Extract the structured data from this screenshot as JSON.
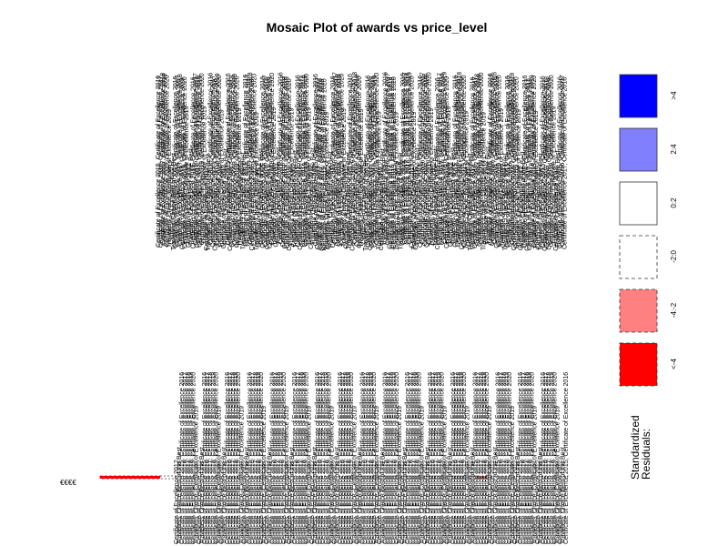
{
  "chart_data": {
    "type": "mosaic",
    "title": "Mosaic Plot of awards vs price_level",
    "row_labels": [
      "€€€€"
    ],
    "column_label_samples": [
      "Certificate of Excellence 2015, Certificate of Excellence 2016",
      "Certificate of Excellence 2016, Certificate of Excellence 2017",
      "Certificate of Excellence 2017, Certificate of Excellence 2018",
      "Certificate of Excellence 2018, Certificate of Excellence 2019",
      "Certificate of Excellence 2019, Certificate of Excellence 2020",
      "Travellers' Choice, Certificate of Excellence 2019",
      "Certificate of Excellence 2012",
      "Travellers' Choice Best of the Best"
    ],
    "legend": {
      "title": "Standardized Residuals:",
      "entries": [
        {
          "label": ">4",
          "color": "#0000ff",
          "border": "solid"
        },
        {
          "label": "2:4",
          "color": "#8080ff",
          "border": "solid"
        },
        {
          "label": "0:2",
          "color": "#ffffff",
          "border": "solid"
        },
        {
          "label": "-2:0",
          "color": "#ffffff",
          "border": "dashed"
        },
        {
          "label": "-4:-2",
          "color": "#ff8080",
          "border": "dashed"
        },
        {
          "label": "<-4",
          "color": "#ff0000",
          "border": "dashed"
        }
      ]
    }
  }
}
